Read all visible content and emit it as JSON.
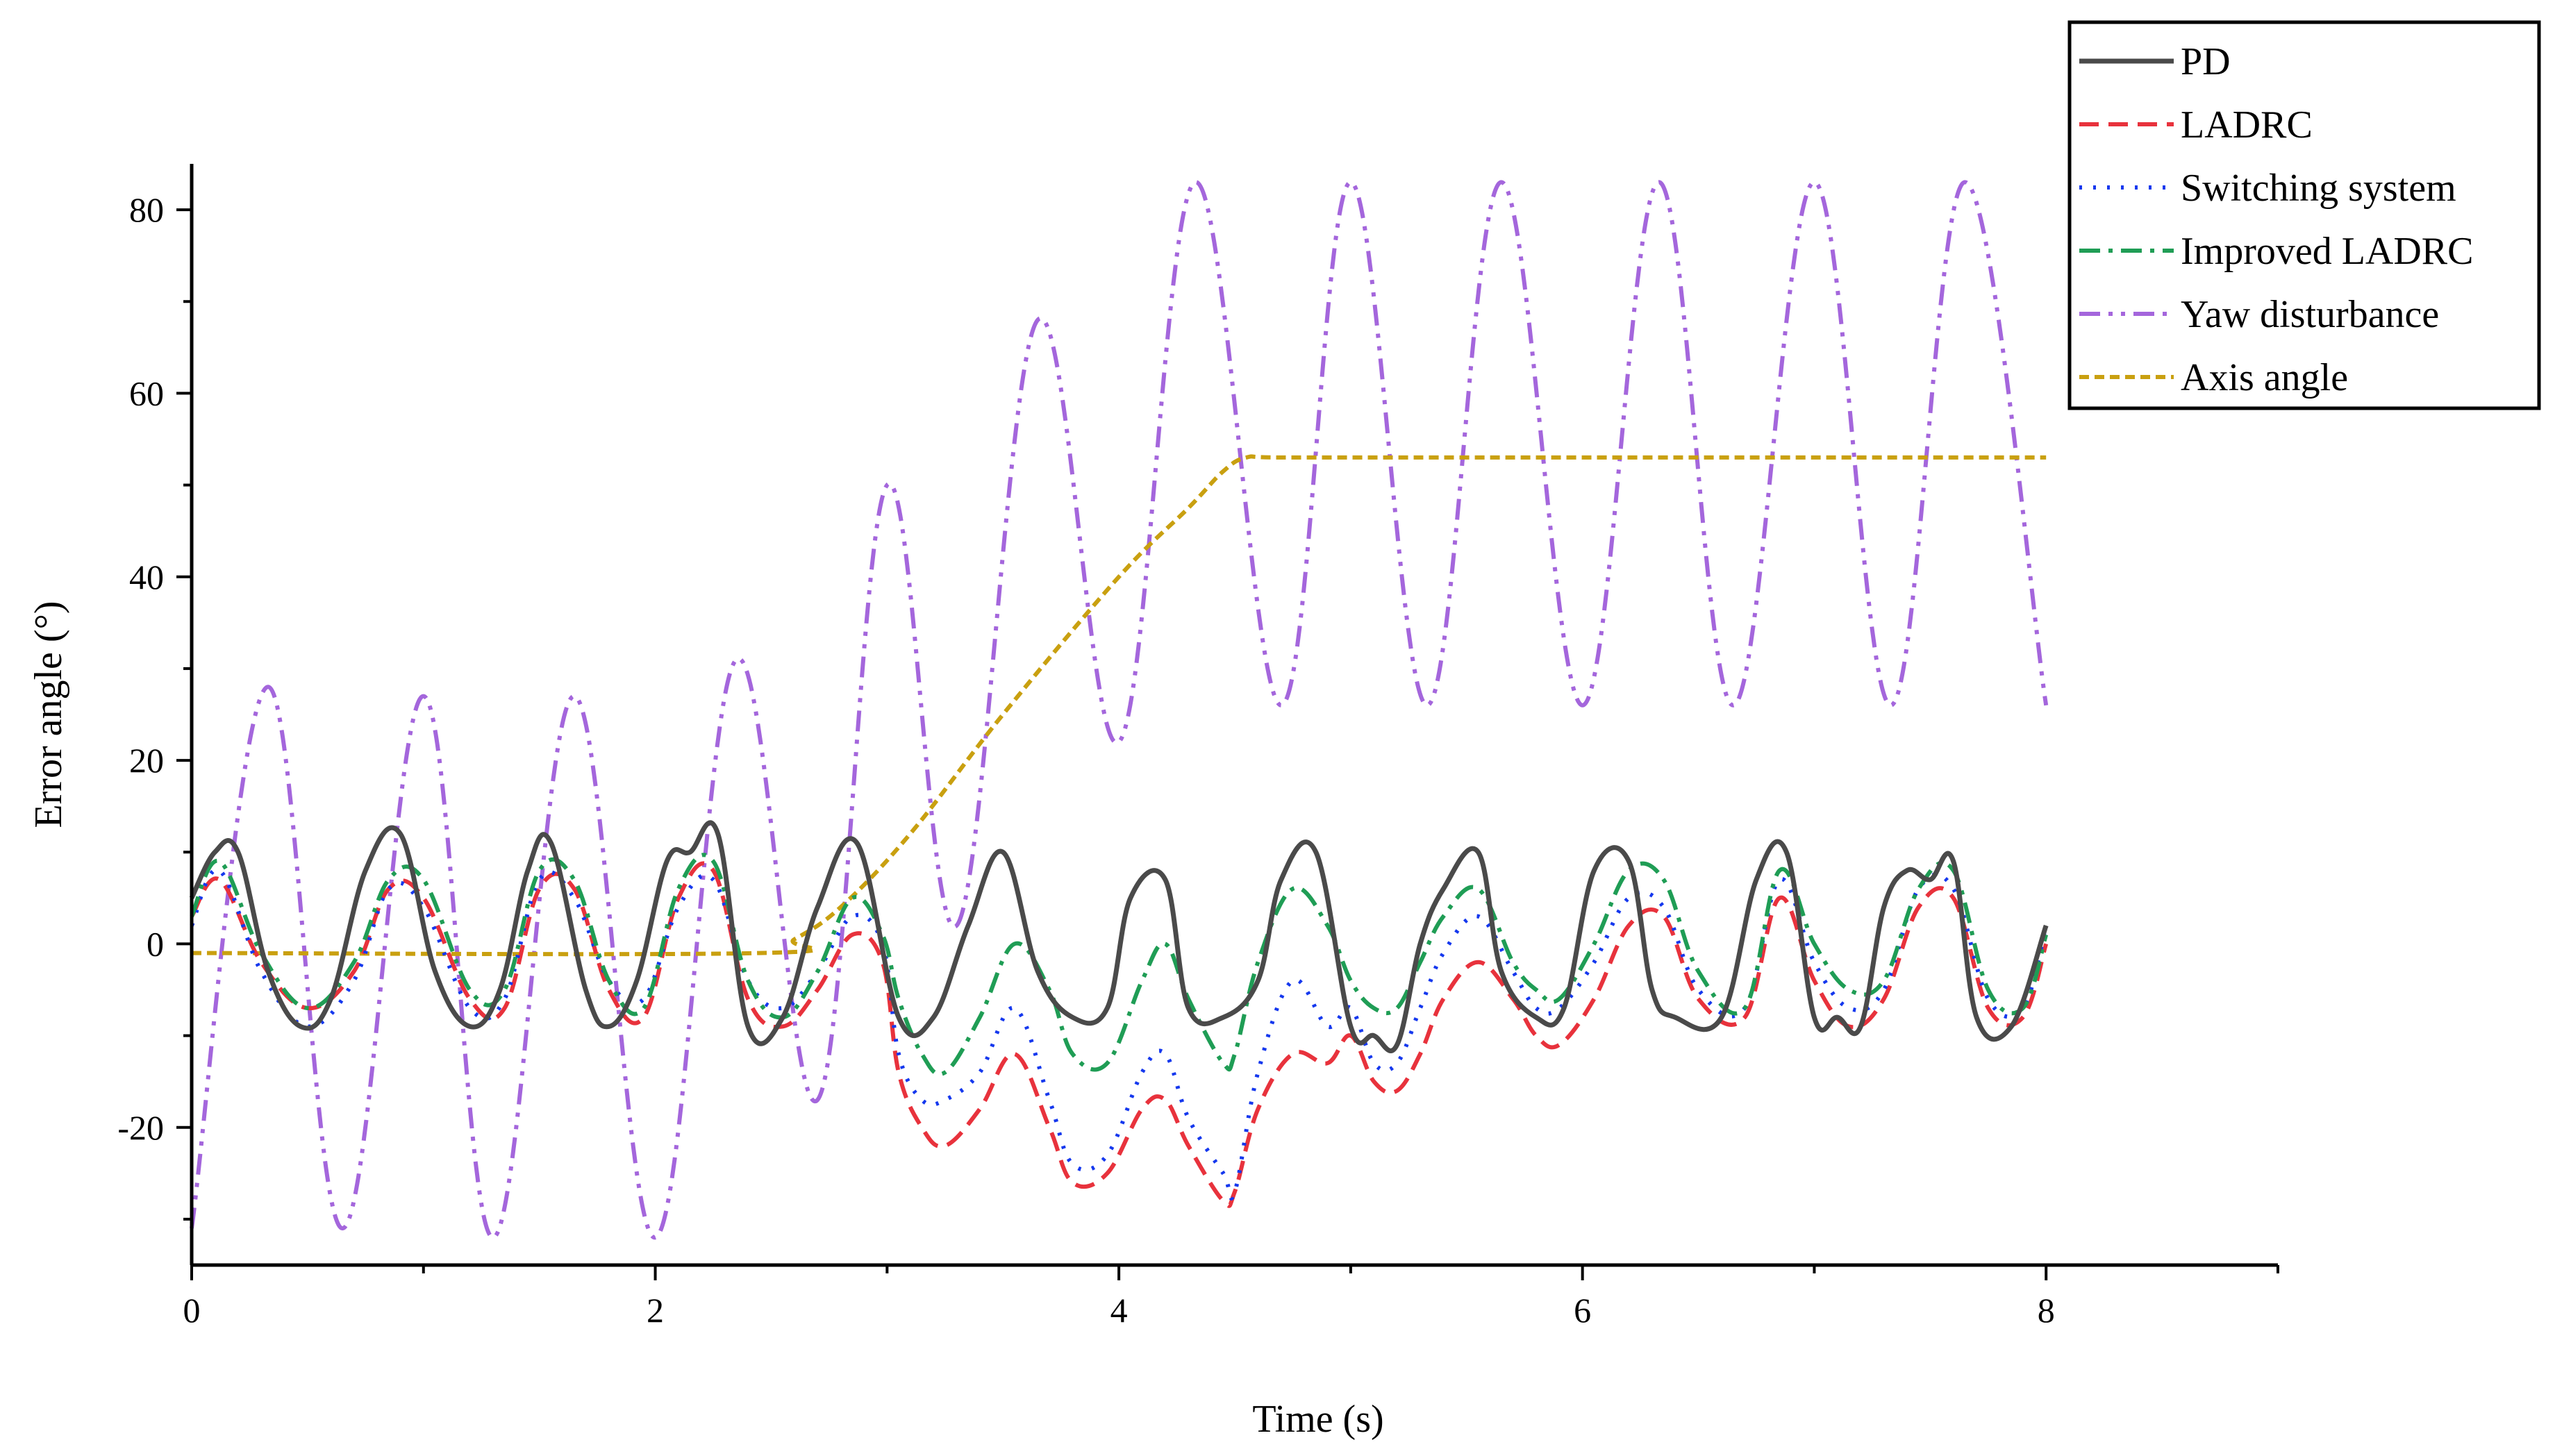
{
  "chart_data": {
    "type": "line",
    "title": "",
    "xlabel": "Time (s)",
    "ylabel": "Error angle (°)",
    "xlim": [
      0,
      9
    ],
    "ylim": [
      -35,
      85
    ],
    "xticks": [
      0,
      2,
      4,
      6,
      8
    ],
    "yticks": [
      -20,
      0,
      20,
      40,
      60,
      80
    ],
    "x_tick_labels": [
      "0",
      "2",
      "4",
      "6",
      "8"
    ],
    "y_tick_labels": [
      "-20",
      "0",
      "20",
      "40",
      "60",
      "80"
    ],
    "grid": false,
    "legend_position": "top-right",
    "series": [
      {
        "name": "PD",
        "color": "#4a4a4a",
        "style": "solid",
        "x": [
          0,
          0.1,
          0.2,
          0.33,
          0.47,
          0.6,
          0.75,
          0.9,
          1.05,
          1.2,
          1.33,
          1.45,
          1.55,
          1.7,
          1.8,
          1.92,
          2.05,
          2.15,
          2.27,
          2.4,
          2.55,
          2.7,
          2.87,
          3.05,
          3.2,
          3.35,
          3.5,
          3.65,
          3.8,
          3.95,
          4.05,
          4.2,
          4.3,
          4.45,
          4.6,
          4.7,
          4.85,
          5.0,
          5.1,
          5.2,
          5.3,
          5.4,
          5.55,
          5.65,
          5.8,
          5.92,
          6.05,
          6.2,
          6.3,
          6.4,
          6.6,
          6.75,
          6.88,
          7.0,
          7.1,
          7.2,
          7.3,
          7.4,
          7.5,
          7.6,
          7.7,
          7.85,
          8.0
        ],
        "y": [
          5,
          10,
          10,
          -3,
          -9,
          -6,
          8,
          12,
          -3,
          -9,
          -5,
          8,
          11,
          -5,
          -9,
          -4,
          9,
          10,
          12,
          -9,
          -8,
          4,
          11,
          -8,
          -8,
          2,
          10,
          -3,
          -8,
          -7,
          5,
          7,
          -7,
          -8,
          -4,
          7,
          10,
          -9,
          -10,
          -11,
          0,
          6,
          10,
          -3,
          -8,
          -7,
          8,
          9,
          -5,
          -8,
          -8,
          7,
          10,
          -8,
          -8,
          -9,
          4,
          8,
          7,
          9,
          -8,
          -9,
          2
        ]
      },
      {
        "name": "LADRC",
        "color": "#e8323c",
        "style": "dashed",
        "x": [
          0,
          0.12,
          0.3,
          0.5,
          0.7,
          0.85,
          1.0,
          1.2,
          1.35,
          1.5,
          1.65,
          1.8,
          1.95,
          2.1,
          2.25,
          2.4,
          2.55,
          2.7,
          2.85,
          2.98,
          3.05,
          3.15,
          3.25,
          3.4,
          3.55,
          3.7,
          3.8,
          3.95,
          4.1,
          4.2,
          4.3,
          4.45,
          4.5,
          4.6,
          4.75,
          4.9,
          5.0,
          5.1,
          5.2,
          5.3,
          5.4,
          5.55,
          5.7,
          5.8,
          5.9,
          6.05,
          6.2,
          6.35,
          6.5,
          6.7,
          6.85,
          7.0,
          7.15,
          7.3,
          7.45,
          7.6,
          7.75,
          7.9,
          8.0
        ],
        "y": [
          3,
          7,
          -2,
          -7,
          -3,
          6,
          5,
          -6,
          -7,
          6,
          6,
          -5,
          -8,
          5,
          8,
          -6,
          -9,
          -5,
          1,
          -2,
          -14,
          -20,
          -22,
          -18,
          -12,
          -20,
          -26,
          -25,
          -18,
          -17,
          -22,
          -28,
          -27,
          -18,
          -12,
          -13,
          -10,
          -15,
          -16,
          -12,
          -6,
          -2,
          -6,
          -10,
          -11,
          -6,
          2,
          3,
          -6,
          -8,
          5,
          -4,
          -9,
          -6,
          4,
          5,
          -7,
          -8,
          0
        ]
      },
      {
        "name": "Switching system",
        "color": "#1538ee",
        "style": "dotted",
        "x": [
          0,
          0.12,
          0.3,
          0.5,
          0.7,
          0.85,
          1.0,
          1.2,
          1.35,
          1.5,
          1.65,
          1.8,
          1.95,
          2.1,
          2.25,
          2.4,
          2.55,
          2.7,
          2.85,
          2.98,
          3.05,
          3.15,
          3.25,
          3.4,
          3.55,
          3.7,
          3.8,
          3.95,
          4.1,
          4.2,
          4.3,
          4.45,
          4.5,
          4.6,
          4.75,
          4.9,
          5.0,
          5.1,
          5.2,
          5.3,
          5.4,
          5.55,
          5.7,
          5.8,
          5.9,
          6.05,
          6.2,
          6.35,
          6.5,
          6.7,
          6.85,
          7.0,
          7.15,
          7.3,
          7.45,
          7.6,
          7.75,
          7.9,
          8.0
        ],
        "y": [
          2,
          8,
          -3,
          -9,
          -4,
          6,
          4,
          -7,
          -6,
          7,
          5,
          -4,
          -6,
          4,
          7,
          -4,
          -7,
          -3,
          3,
          0,
          -12,
          -17,
          -17,
          -14,
          -7,
          -17,
          -24,
          -23,
          -14,
          -12,
          -19,
          -25,
          -27,
          -14,
          -4,
          -9,
          -7,
          -13,
          -13,
          -7,
          -1,
          3,
          -3,
          -7,
          -7,
          -2,
          5,
          4,
          -5,
          -7,
          7,
          -2,
          -7,
          -5,
          6,
          6,
          -6,
          -7,
          2
        ]
      },
      {
        "name": "Improved LADRC",
        "color": "#1f9d55",
        "style": "dashdot",
        "x": [
          0,
          0.12,
          0.3,
          0.5,
          0.7,
          0.85,
          1.0,
          1.2,
          1.35,
          1.5,
          1.65,
          1.8,
          1.95,
          2.1,
          2.25,
          2.4,
          2.55,
          2.7,
          2.85,
          2.98,
          3.05,
          3.15,
          3.25,
          3.4,
          3.55,
          3.7,
          3.8,
          3.95,
          4.1,
          4.2,
          4.3,
          4.45,
          4.5,
          4.6,
          4.75,
          4.9,
          5.0,
          5.1,
          5.2,
          5.3,
          5.4,
          5.55,
          5.7,
          5.8,
          5.9,
          6.05,
          6.2,
          6.35,
          6.5,
          6.7,
          6.85,
          7.0,
          7.15,
          7.3,
          7.45,
          7.6,
          7.75,
          7.9,
          8.0
        ],
        "y": [
          3,
          9,
          -1,
          -7,
          -2,
          7,
          7,
          -5,
          -5,
          8,
          7,
          -4,
          -7,
          6,
          9,
          -4,
          -8,
          -3,
          5,
          1,
          -6,
          -12,
          -14,
          -8,
          0,
          -5,
          -12,
          -13,
          -4,
          0,
          -6,
          -13,
          -12,
          -2,
          6,
          2,
          -4,
          -7,
          -7,
          -2,
          3,
          6,
          -2,
          -5,
          -6,
          0,
          8,
          7,
          -3,
          -7,
          8,
          0,
          -5,
          -4,
          6,
          8,
          -5,
          -7,
          1
        ]
      },
      {
        "name": "Yaw disturbance",
        "color": "#a466dc",
        "style": "dashdotdot",
        "x": [
          0,
          0.33,
          0.65,
          1.0,
          1.3,
          1.65,
          2.0,
          2.35,
          2.7,
          3.0,
          3.3,
          3.65,
          4.0,
          4.33,
          4.7,
          5.0,
          5.33,
          5.65,
          6.0,
          6.33,
          6.65,
          7.0,
          7.33,
          7.65,
          8.0
        ],
        "y": [
          -31,
          28,
          -31,
          27,
          -32,
          27,
          -32,
          31,
          -17,
          50,
          2,
          68,
          22,
          83,
          26,
          83,
          26,
          83,
          26,
          83,
          26,
          83,
          26,
          83,
          26
        ]
      },
      {
        "name": "Axis angle",
        "color": "#c9a010",
        "style": "shortdash",
        "x": [
          0,
          2.45,
          2.6,
          2.8,
          3.1,
          3.5,
          4.0,
          4.3,
          4.45,
          4.55,
          4.7,
          5.5,
          6.5,
          7.5,
          8.0
        ],
        "y": [
          -1,
          -1,
          0.5,
          4,
          12,
          25,
          40,
          47.5,
          51.5,
          53,
          53,
          53,
          53,
          53,
          53
        ]
      }
    ]
  }
}
